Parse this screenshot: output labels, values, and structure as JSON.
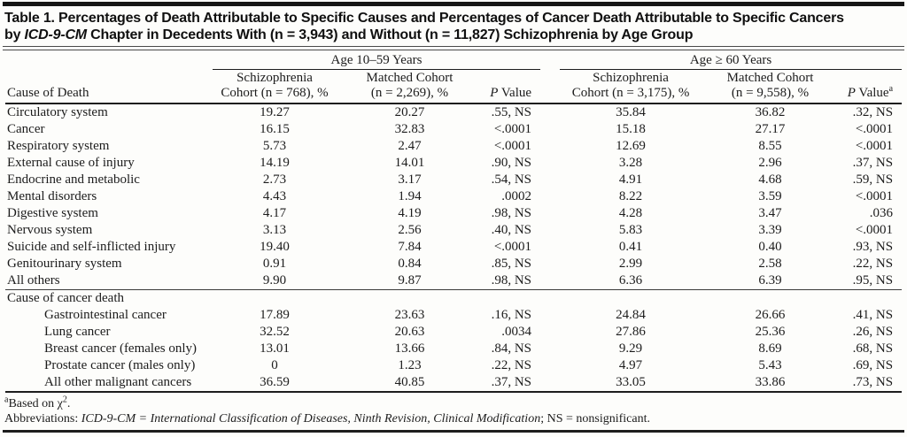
{
  "title": {
    "line1": "Table 1. Percentages of Death Attributable to Specific Causes and Percentages of Cancer Death Attributable to Specific Cancers",
    "line2_pre": "by ",
    "line2_italic": "ICD-9-CM",
    "line2_post": " Chapter in Decedents With (n = 3,943) and Without (n = 11,827) Schizophrenia by Age Group"
  },
  "table": {
    "corner_label": "Cause of Death",
    "groups": [
      {
        "label": "Age 10–59 Years",
        "cols": [
          {
            "l1": "Schizophrenia",
            "l2": "Cohort (n = 768), %"
          },
          {
            "l1": "Matched Cohort",
            "l2": "(n = 2,269), %"
          },
          {
            "p": "P",
            "rest": " Value",
            "sup": ""
          }
        ]
      },
      {
        "label": "Age ≥ 60 Years",
        "cols": [
          {
            "l1": "Schizophrenia",
            "l2": "Cohort (n = 3,175), %"
          },
          {
            "l1": "Matched Cohort",
            "l2": "(n = 9,558), %"
          },
          {
            "p": "P",
            "rest": " Value",
            "sup": "a"
          }
        ]
      }
    ],
    "rows": [
      {
        "type": "data",
        "label": "Circulatory system",
        "values": [
          "19.27",
          "20.27",
          ".55, NS",
          "35.84",
          "36.82",
          ".32, NS"
        ]
      },
      {
        "type": "data",
        "label": "Cancer",
        "values": [
          "16.15",
          "32.83",
          "<.0001",
          "15.18",
          "27.17",
          "<.0001"
        ]
      },
      {
        "type": "data",
        "label": "Respiratory system",
        "values": [
          "5.73",
          "2.47",
          "<.0001",
          "12.69",
          "8.55",
          "<.0001"
        ]
      },
      {
        "type": "data",
        "label": "External cause of injury",
        "values": [
          "14.19",
          "14.01",
          ".90, NS",
          "3.28",
          "2.96",
          ".37, NS"
        ]
      },
      {
        "type": "data",
        "label": "Endocrine and metabolic",
        "values": [
          "2.73",
          "3.17",
          ".54, NS",
          "4.91",
          "4.68",
          ".59, NS"
        ]
      },
      {
        "type": "data",
        "label": "Mental disorders",
        "values": [
          "4.43",
          "1.94",
          ".0002",
          "8.22",
          "3.59",
          "<.0001"
        ]
      },
      {
        "type": "data",
        "label": "Digestive system",
        "values": [
          "4.17",
          "4.19",
          ".98, NS",
          "4.28",
          "3.47",
          ".036"
        ]
      },
      {
        "type": "data",
        "label": "Nervous system",
        "values": [
          "3.13",
          "2.56",
          ".40, NS",
          "5.83",
          "3.39",
          "<.0001"
        ]
      },
      {
        "type": "data",
        "label": "Suicide and self-inflicted injury",
        "values": [
          "19.40",
          "7.84",
          "<.0001",
          "0.41",
          "0.40",
          ".93, NS"
        ]
      },
      {
        "type": "data",
        "label": "Genitourinary system",
        "values": [
          "0.91",
          "0.84",
          ".85, NS",
          "2.99",
          "2.58",
          ".22, NS"
        ]
      },
      {
        "type": "data",
        "label": "All others",
        "values": [
          "9.90",
          "9.87",
          ".98, NS",
          "6.36",
          "6.39",
          ".95, NS"
        ]
      },
      {
        "type": "section",
        "label": "Cause of cancer death",
        "values": []
      },
      {
        "type": "indent",
        "label": "Gastrointestinal cancer",
        "values": [
          "17.89",
          "23.63",
          ".16, NS",
          "24.84",
          "26.66",
          ".41, NS"
        ]
      },
      {
        "type": "indent",
        "label": "Lung cancer",
        "values": [
          "32.52",
          "20.63",
          ".0034",
          "27.86",
          "25.36",
          ".26, NS"
        ]
      },
      {
        "type": "indent",
        "label": "Breast cancer (females only)",
        "values": [
          "13.01",
          "13.66",
          ".84, NS",
          "9.29",
          "8.69",
          ".68, NS"
        ]
      },
      {
        "type": "indent",
        "label": "Prostate cancer (males only)",
        "values": [
          "0",
          "1.23",
          ".22, NS",
          "4.97",
          "5.43",
          ".69, NS"
        ]
      },
      {
        "type": "indent",
        "label": "All other malignant cancers",
        "values": [
          "36.59",
          "40.85",
          ".37, NS",
          "33.05",
          "33.86",
          ".73, NS"
        ]
      }
    ]
  },
  "footnotes": {
    "a_marker": "a",
    "a_text": "Based on χ",
    "a_sup2": "2",
    "a_period": ".",
    "abbr_prefix": "Abbreviations: ",
    "abbr_italic": "ICD-9-CM = International Classification of Diseases, Ninth Revision, Clinical Modification",
    "abbr_suffix": "; NS = nonsignificant."
  }
}
